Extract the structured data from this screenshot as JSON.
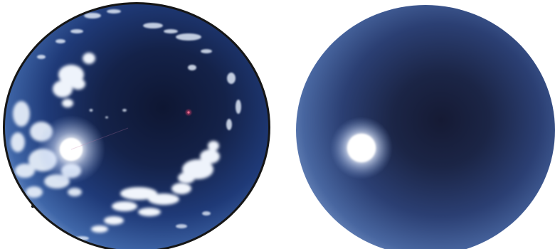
{
  "figure": {
    "panels": [
      {
        "id": "photo",
        "content": "fisheye-sky-photograph",
        "features": [
          "sun",
          "clouds",
          "lens-flare"
        ],
        "colors": {
          "sky_deep": "#101a38",
          "sky_mid": "#1f3a78",
          "sky_edge": "#6f93c8",
          "cloud": "#eef3fb",
          "horizon_edge": "#1a1a1a"
        }
      },
      {
        "id": "rendered",
        "content": "simulated-clear-sky-render",
        "features": [
          "sun"
        ],
        "colors": {
          "sky_deep": "#141a34",
          "sky_mid": "#2b3f73",
          "sky_edge": "#6b88bd",
          "sun": "#ffffff"
        }
      }
    ]
  }
}
